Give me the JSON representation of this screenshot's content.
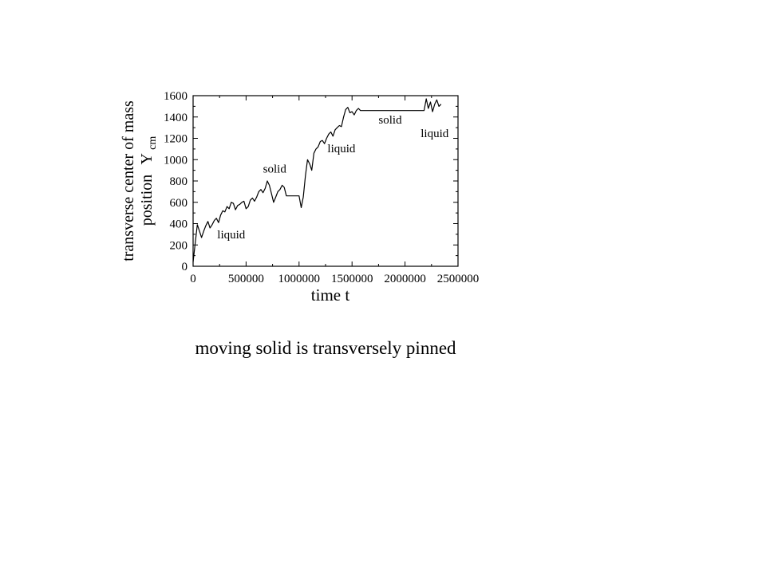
{
  "caption": "moving solid is transversely pinned",
  "chart_data": {
    "type": "line",
    "title": "",
    "xlabel": "time t",
    "ylabel_line1": "transverse center of mass",
    "ylabel_line2": "position",
    "ylabel_symbol": "Y",
    "ylabel_subscript": "cm",
    "xlim": [
      0,
      2500000
    ],
    "ylim": [
      0,
      1600
    ],
    "xticks": [
      0,
      500000,
      1000000,
      1500000,
      2000000,
      2500000
    ],
    "xtick_labels": [
      "0",
      "500000",
      "1000000",
      "1500000",
      "2000000",
      "2500000"
    ],
    "yticks": [
      0,
      200,
      400,
      600,
      800,
      1000,
      1200,
      1400,
      1600
    ],
    "ytick_labels": [
      "0",
      "200",
      "400",
      "600",
      "800",
      "1000",
      "1200",
      "1400",
      "1600"
    ],
    "grid": false,
    "series": [
      {
        "x": [
          0,
          20000,
          40000,
          60000,
          80000,
          100000,
          120000,
          140000,
          160000,
          180000,
          200000,
          220000,
          240000,
          260000,
          280000,
          300000,
          320000,
          340000,
          360000,
          380000,
          400000,
          420000,
          440000,
          460000,
          480000,
          500000,
          520000,
          540000,
          560000,
          580000,
          600000,
          620000,
          640000,
          660000,
          680000,
          700000,
          720000,
          740000,
          760000,
          780000,
          800000,
          820000,
          840000,
          860000,
          880000,
          1000000,
          1020000,
          1040000,
          1060000,
          1080000,
          1100000,
          1120000,
          1140000,
          1160000,
          1180000,
          1200000,
          1220000,
          1240000,
          1260000,
          1280000,
          1300000,
          1320000,
          1340000,
          1360000,
          1380000,
          1400000,
          1420000,
          1440000,
          1460000,
          1480000,
          1500000,
          1520000,
          1540000,
          1560000,
          1580000,
          1600000,
          2180000,
          2200000,
          2220000,
          2240000,
          2260000,
          2280000,
          2300000,
          2320000,
          2340000
        ],
        "y": [
          40,
          220,
          390,
          330,
          270,
          330,
          380,
          420,
          360,
          390,
          430,
          450,
          410,
          480,
          520,
          510,
          560,
          540,
          600,
          590,
          530,
          570,
          580,
          600,
          610,
          540,
          560,
          620,
          640,
          610,
          650,
          700,
          720,
          690,
          730,
          800,
          760,
          680,
          600,
          650,
          700,
          720,
          760,
          740,
          660,
          660,
          550,
          650,
          850,
          1000,
          960,
          900,
          1060,
          1100,
          1120,
          1170,
          1180,
          1150,
          1200,
          1240,
          1260,
          1220,
          1280,
          1300,
          1320,
          1310,
          1400,
          1470,
          1490,
          1440,
          1450,
          1420,
          1460,
          1480,
          1460,
          1460,
          1460,
          1570,
          1480,
          1540,
          1450,
          1520,
          1560,
          1500,
          1520
        ]
      }
    ],
    "annotations": [
      {
        "text": "liquid",
        "x": 360000,
        "y": 260
      },
      {
        "text": "solid",
        "x": 770000,
        "y": 880
      },
      {
        "text": "liquid",
        "x": 1400000,
        "y": 1070
      },
      {
        "text": "solid",
        "x": 1860000,
        "y": 1340
      },
      {
        "text": "liquid",
        "x": 2280000,
        "y": 1210
      }
    ]
  }
}
